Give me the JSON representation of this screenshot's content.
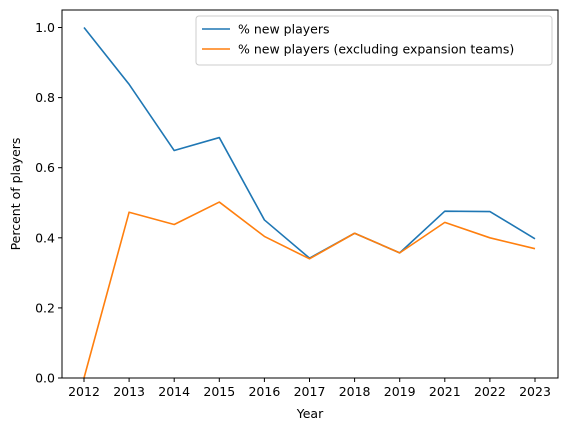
{
  "chart_data": {
    "type": "line",
    "x": [
      "2012",
      "2013",
      "2014",
      "2015",
      "2016",
      "2017",
      "2018",
      "2019",
      "2021",
      "2022",
      "2023"
    ],
    "series": [
      {
        "name": "% new players",
        "color": "#1f77b4",
        "values": [
          1.0,
          0.838,
          0.649,
          0.686,
          0.451,
          0.342,
          0.413,
          0.357,
          0.476,
          0.475,
          0.397
        ]
      },
      {
        "name": "% new players (excluding expansion teams)",
        "color": "#ff7f0e",
        "values": [
          0.0,
          0.473,
          0.438,
          0.502,
          0.404,
          0.34,
          0.413,
          0.357,
          0.444,
          0.4,
          0.369
        ]
      }
    ],
    "xlabel": "Year",
    "ylabel": "Percent of players",
    "ylim": [
      0.0,
      1.05
    ],
    "yticks": [
      "0.0",
      "0.2",
      "0.4",
      "0.6",
      "0.8",
      "1.0"
    ],
    "grid": false,
    "legend_position": "upper right"
  }
}
